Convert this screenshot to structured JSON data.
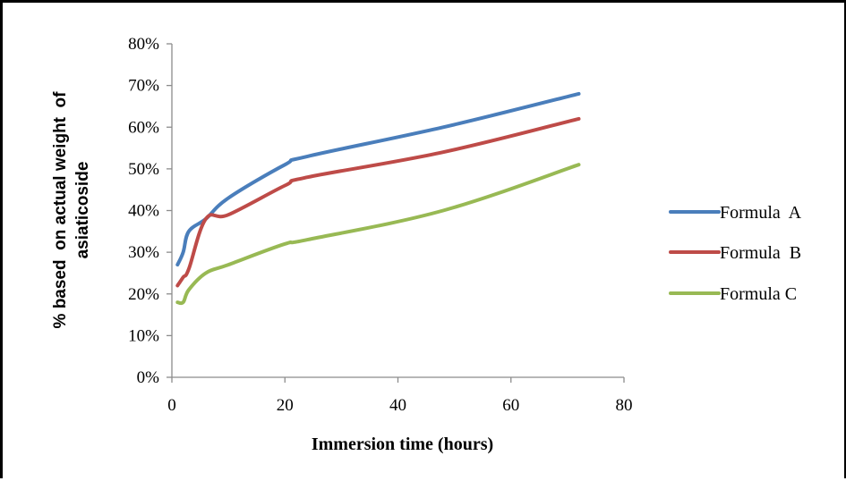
{
  "chart_data": {
    "type": "line",
    "title": "",
    "xlabel": "Immersion time (hours)",
    "ylabel_lines": [
      "% based  on actual weight  of",
      "asiaticoside"
    ],
    "xlim": [
      0,
      80
    ],
    "ylim": [
      0,
      0.8
    ],
    "x_ticks": [
      0,
      20,
      40,
      60,
      80
    ],
    "x_tick_labels": [
      "0",
      "20",
      "40",
      "60",
      "80"
    ],
    "y_ticks": [
      0,
      0.1,
      0.2,
      0.3,
      0.4,
      0.5,
      0.6,
      0.7,
      0.8
    ],
    "y_tick_labels": [
      "0%",
      "10%",
      "20%",
      "30%",
      "40%",
      "50%",
      "60%",
      "70%",
      "80%"
    ],
    "grid": false,
    "legend_position": "right",
    "series": [
      {
        "name": "Formula  A",
        "color": "#4a7ebb",
        "x": [
          1,
          2,
          3,
          6,
          10,
          20,
          24,
          48,
          72
        ],
        "y": [
          0.27,
          0.3,
          0.35,
          0.38,
          0.43,
          0.51,
          0.53,
          0.6,
          0.68
        ]
      },
      {
        "name": "Formula  B",
        "color": "#be4b48",
        "x": [
          1,
          2,
          3,
          6,
          10,
          20,
          24,
          48,
          72
        ],
        "y": [
          0.22,
          0.24,
          0.26,
          0.38,
          0.39,
          0.46,
          0.48,
          0.54,
          0.62
        ]
      },
      {
        "name": "Formula C",
        "color": "#98b954",
        "x": [
          1,
          2,
          3,
          6,
          10,
          20,
          24,
          48,
          72
        ],
        "y": [
          0.18,
          0.18,
          0.21,
          0.25,
          0.27,
          0.32,
          0.33,
          0.4,
          0.51
        ]
      }
    ]
  }
}
